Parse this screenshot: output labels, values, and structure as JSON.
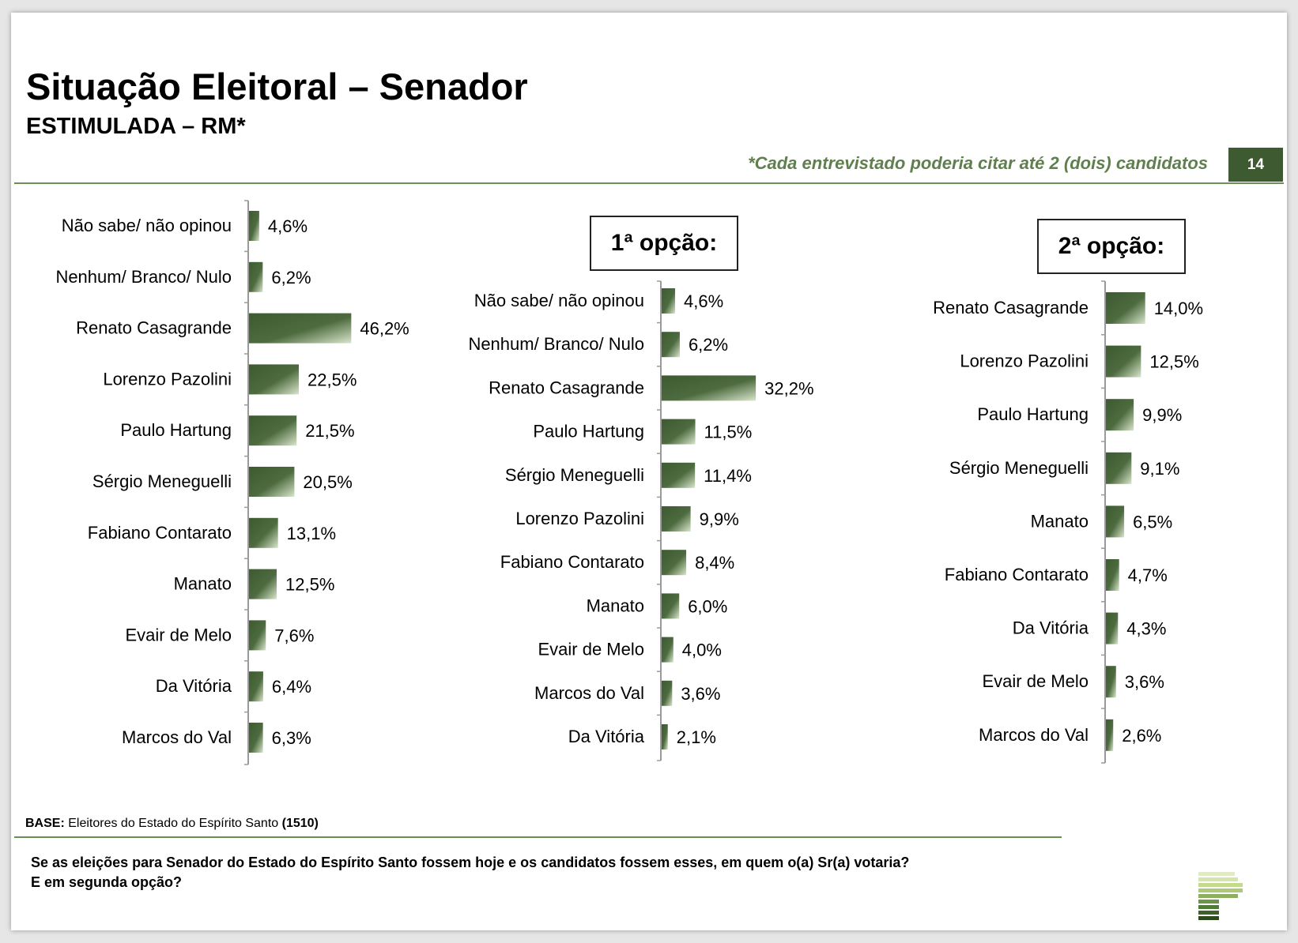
{
  "header": {
    "title": "Situação Eleitoral – Senador",
    "subtitle": "ESTIMULADA – RM*",
    "note": "*Cada entrevistado poderia citar até 2 (dois) candidatos",
    "page_number": "14"
  },
  "boxes": {
    "first_option": "1ª opção:",
    "second_option": "2ª opção:"
  },
  "footer": {
    "base_label": "BASE:",
    "base_text": "Eleitores do Estado do Espírito Santo",
    "base_count": "(1510)",
    "question_line1": "Se as eleições para Senador do Estado do Espírito Santo fossem hoje e os candidatos fossem esses, em quem o(a) Sr(a) votaria?",
    "question_line2": "E em segunda opção?"
  },
  "colors": {
    "bar_dark": "#3d5a30",
    "bar_light": "#d9e6cc",
    "accent": "#6a8e55",
    "note_text": "#5f7f4e"
  },
  "chart_data": [
    {
      "type": "bar",
      "orientation": "horizontal",
      "title": "",
      "categories": [
        "Não sabe/ não opinou",
        "Nenhum/ Branco/ Nulo",
        "Renato Casagrande",
        "Lorenzo Pazolini",
        "Paulo Hartung",
        "Sérgio Meneguelli",
        "Fabiano Contarato",
        "Manato",
        "Evair de Melo",
        "Da Vitória",
        "Marcos do Val"
      ],
      "values": [
        4.6,
        6.2,
        46.2,
        22.5,
        21.5,
        20.5,
        13.1,
        12.5,
        7.6,
        6.4,
        6.3
      ],
      "labels": [
        "4,6%",
        "6,2%",
        "46,2%",
        "22,5%",
        "21,5%",
        "20,5%",
        "13,1%",
        "12,5%",
        "7,6%",
        "6,4%",
        "6,3%"
      ],
      "unit": "%"
    },
    {
      "type": "bar",
      "orientation": "horizontal",
      "title": "1ª opção:",
      "categories": [
        "Não sabe/ não opinou",
        "Nenhum/ Branco/ Nulo",
        "Renato Casagrande",
        "Paulo Hartung",
        "Sérgio Meneguelli",
        "Lorenzo Pazolini",
        "Fabiano Contarato",
        "Manato",
        "Evair de Melo",
        "Marcos do Val",
        "Da Vitória"
      ],
      "values": [
        4.6,
        6.2,
        32.2,
        11.5,
        11.4,
        9.9,
        8.4,
        6.0,
        4.0,
        3.6,
        2.1
      ],
      "labels": [
        "4,6%",
        "6,2%",
        "32,2%",
        "11,5%",
        "11,4%",
        "9,9%",
        "8,4%",
        "6,0%",
        "4,0%",
        "3,6%",
        "2,1%"
      ],
      "unit": "%"
    },
    {
      "type": "bar",
      "orientation": "horizontal",
      "title": "2ª opção:",
      "categories": [
        "Renato Casagrande",
        "Lorenzo Pazolini",
        "Paulo Hartung",
        "Sérgio Meneguelli",
        "Manato",
        "Fabiano Contarato",
        "Da Vitória",
        "Evair de Melo",
        "Marcos do Val"
      ],
      "values": [
        14.0,
        12.5,
        9.9,
        9.1,
        6.5,
        4.7,
        4.3,
        3.6,
        2.6
      ],
      "labels": [
        "14,0%",
        "12,5%",
        "9,9%",
        "9,1%",
        "6,5%",
        "4,7%",
        "4,3%",
        "3,6%",
        "2,6%"
      ],
      "unit": "%"
    }
  ]
}
